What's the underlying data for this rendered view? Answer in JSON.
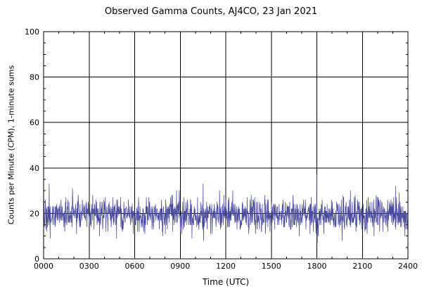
{
  "chart_data": {
    "type": "line",
    "title": "Observed Gamma Counts, AJ4CO, 23 Jan 2021",
    "xlabel": "Time (UTC)",
    "ylabel": "Counts per Minute (CPM), 1-minute sums",
    "x_tick_labels": [
      "0000",
      "0300",
      "0600",
      "0900",
      "1200",
      "1500",
      "1800",
      "2100",
      "2400"
    ],
    "x_tick_minutes": [
      0,
      180,
      360,
      540,
      720,
      900,
      1080,
      1260,
      1440
    ],
    "x_minor_step_minutes": 60,
    "xlim_minutes": [
      0,
      1440
    ],
    "y_ticks": [
      0,
      20,
      40,
      60,
      80,
      100
    ],
    "y_minor_step": 5,
    "ylim": [
      0,
      100
    ],
    "grid": true,
    "frame_color": "#000000",
    "series": [
      {
        "name": "gamma-counts-1min-sums",
        "color": "#4a4a9e",
        "n_points": 1440,
        "mean_cpm": 19.5,
        "std_cpm": 3.6,
        "min_clip": 8,
        "max_clip": 33,
        "integer_counts": true,
        "seed": 20210123,
        "spikes": [
          {
            "minute": 22,
            "value": 33
          },
          {
            "minute": 1080,
            "value": 37
          },
          {
            "minute": 1082,
            "value": 7
          }
        ]
      }
    ]
  }
}
